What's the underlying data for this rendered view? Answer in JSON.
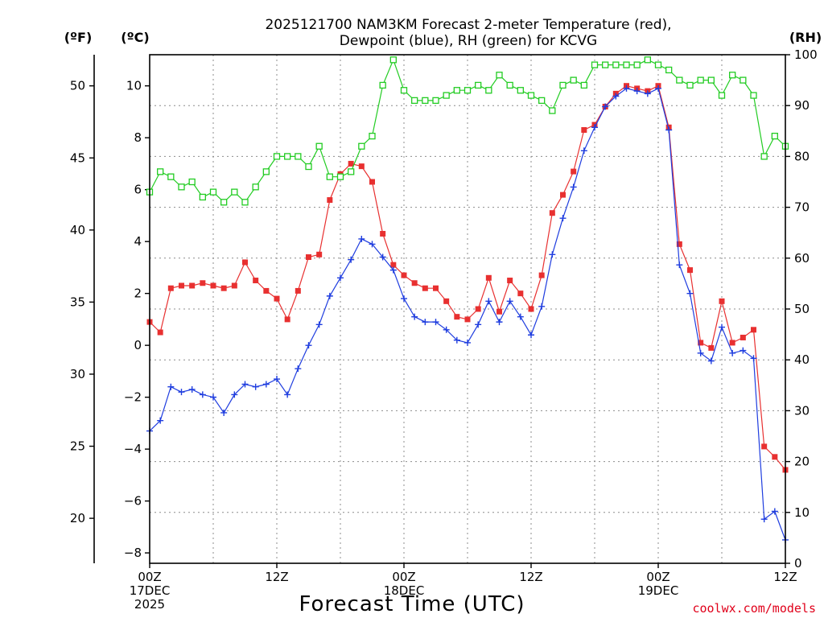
{
  "chart_data": {
    "type": "line",
    "title_line1": "2025121700 NAM3KM Forecast 2-meter Temperature (red),",
    "title_line2": "Dewpoint (blue), RH (green) for KCVG",
    "xlabel": "Forecast Time (UTC)",
    "credit": "coolwx.com/models",
    "left_unit_outer": "(ºF)",
    "left_unit_inner": "(ºC)",
    "right_unit": "(RH)",
    "x_hours_range": [
      0,
      60
    ],
    "x_ticks": [
      {
        "hour": 0,
        "line1": "00Z",
        "line2": "17DEC",
        "line3": "2025"
      },
      {
        "hour": 12,
        "line1": "12Z",
        "line2": "",
        "line3": ""
      },
      {
        "hour": 24,
        "line1": "00Z",
        "line2": "18DEC",
        "line3": ""
      },
      {
        "hour": 36,
        "line1": "12Z",
        "line2": "",
        "line3": ""
      },
      {
        "hour": 48,
        "line1": "00Z",
        "line2": "19DEC",
        "line3": ""
      },
      {
        "hour": 60,
        "line1": "12Z",
        "line2": "",
        "line3": ""
      }
    ],
    "y_celsius_range": [
      -8.4,
      11.2
    ],
    "y_celsius_ticks": [
      "−8",
      "−6",
      "−4",
      "−2",
      "0",
      "2",
      "4",
      "6",
      "8",
      "10"
    ],
    "y_fahrenheit_ticks": [
      "20",
      "25",
      "30",
      "35",
      "40",
      "45",
      "50"
    ],
    "y_rh_range": [
      0,
      100
    ],
    "y_rh_ticks": [
      "0",
      "10",
      "20",
      "30",
      "40",
      "50",
      "60",
      "70",
      "80",
      "90",
      "100"
    ],
    "series": [
      {
        "name": "Temperature (°C)",
        "color": "#e83030",
        "marker": "filled-square",
        "axis": "celsius",
        "values": [
          0.9,
          0.5,
          2.2,
          2.3,
          2.3,
          2.4,
          2.3,
          2.2,
          2.3,
          3.2,
          2.5,
          2.1,
          1.8,
          1.0,
          2.1,
          3.4,
          3.5,
          5.6,
          6.6,
          7.0,
          6.9,
          6.3,
          4.3,
          3.1,
          2.7,
          2.4,
          2.2,
          2.2,
          1.7,
          1.1,
          1.0,
          1.4,
          2.6,
          1.3,
          2.5,
          2.0,
          1.4,
          2.7,
          5.1,
          5.8,
          6.7,
          8.3,
          8.5,
          9.2,
          9.7,
          10.0,
          9.9,
          9.8,
          10.0,
          8.4,
          3.9,
          2.9,
          0.1,
          -0.1,
          1.7,
          0.1,
          0.3,
          0.6,
          -3.9,
          -4.3,
          -4.8
        ]
      },
      {
        "name": "Dewpoint (°C)",
        "color": "#1f3ddf",
        "marker": "plus",
        "axis": "celsius",
        "values": [
          -3.3,
          -2.9,
          -1.6,
          -1.8,
          -1.7,
          -1.9,
          -2.0,
          -2.6,
          -1.9,
          -1.5,
          -1.6,
          -1.5,
          -1.3,
          -1.9,
          -0.9,
          0.0,
          0.8,
          1.9,
          2.6,
          3.3,
          4.1,
          3.9,
          3.4,
          2.9,
          1.8,
          1.1,
          0.9,
          0.9,
          0.6,
          0.2,
          0.1,
          0.8,
          1.7,
          0.9,
          1.7,
          1.1,
          0.4,
          1.5,
          3.5,
          4.9,
          6.1,
          7.5,
          8.4,
          9.2,
          9.6,
          9.9,
          9.8,
          9.7,
          9.9,
          8.3,
          3.1,
          2.0,
          -0.3,
          -0.6,
          0.7,
          -0.3,
          -0.2,
          -0.5,
          -6.7,
          -6.4,
          -7.5
        ]
      },
      {
        "name": "RH (%)",
        "color": "#22cc22",
        "marker": "open-square",
        "axis": "rh",
        "values": [
          73,
          77,
          76,
          74,
          75,
          72,
          73,
          71,
          73,
          71,
          74,
          77,
          80,
          80,
          80,
          78,
          82,
          76,
          76,
          77,
          82,
          84,
          94,
          99,
          93,
          91,
          91,
          91,
          92,
          93,
          93,
          94,
          93,
          96,
          94,
          93,
          92,
          91,
          89,
          94,
          95,
          94,
          98,
          98,
          98,
          98,
          98,
          99,
          98,
          97,
          95,
          94,
          95,
          95,
          92,
          96,
          95,
          92,
          80,
          84,
          82
        ]
      }
    ]
  }
}
